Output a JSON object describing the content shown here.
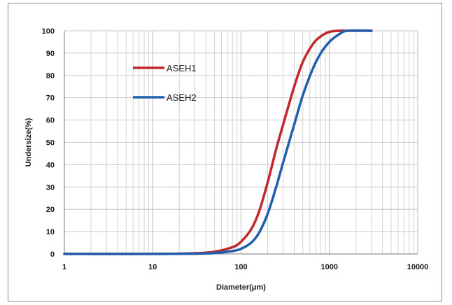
{
  "chart_data": {
    "type": "line",
    "xlabel": "Diameter(μm)",
    "ylabel": "Undersize(%)",
    "xscale": "log",
    "xlim": [
      1,
      10000
    ],
    "ylim": [
      0,
      100
    ],
    "xticks": [
      1,
      10,
      100,
      1000,
      10000
    ],
    "xtick_labels": [
      "1",
      "10",
      "100",
      "1000",
      "10000"
    ],
    "yticks": [
      0,
      10,
      20,
      30,
      40,
      50,
      60,
      70,
      80,
      90,
      100
    ],
    "ytick_labels": [
      "0",
      "10",
      "20",
      "30",
      "40",
      "50",
      "60",
      "70",
      "80",
      "90",
      "100"
    ],
    "grid": true,
    "legend_position": "upper-left",
    "series": [
      {
        "name": "ASEH1",
        "color": "#c0282d",
        "x": [
          1,
          10,
          30,
          50,
          80,
          100,
          130,
          160,
          200,
          250,
          300,
          400,
          500,
          650,
          800,
          1000,
          1300,
          1600,
          3000
        ],
        "y": [
          0,
          0,
          0.3,
          1,
          3,
          5.5,
          11,
          19,
          32,
          47,
          58,
          75,
          86,
          94,
          97.5,
          99.5,
          100,
          100,
          100
        ]
      },
      {
        "name": "ASEH2",
        "color": "#1f5fae",
        "x": [
          1,
          10,
          30,
          50,
          80,
          100,
          130,
          160,
          200,
          250,
          300,
          400,
          500,
          650,
          800,
          1000,
          1300,
          1600,
          3000
        ],
        "y": [
          0,
          0,
          0.1,
          0.4,
          1.3,
          2.3,
          5,
          9.5,
          18,
          30,
          41,
          58,
          71,
          83,
          90,
          95,
          98.5,
          100,
          100
        ]
      }
    ]
  }
}
